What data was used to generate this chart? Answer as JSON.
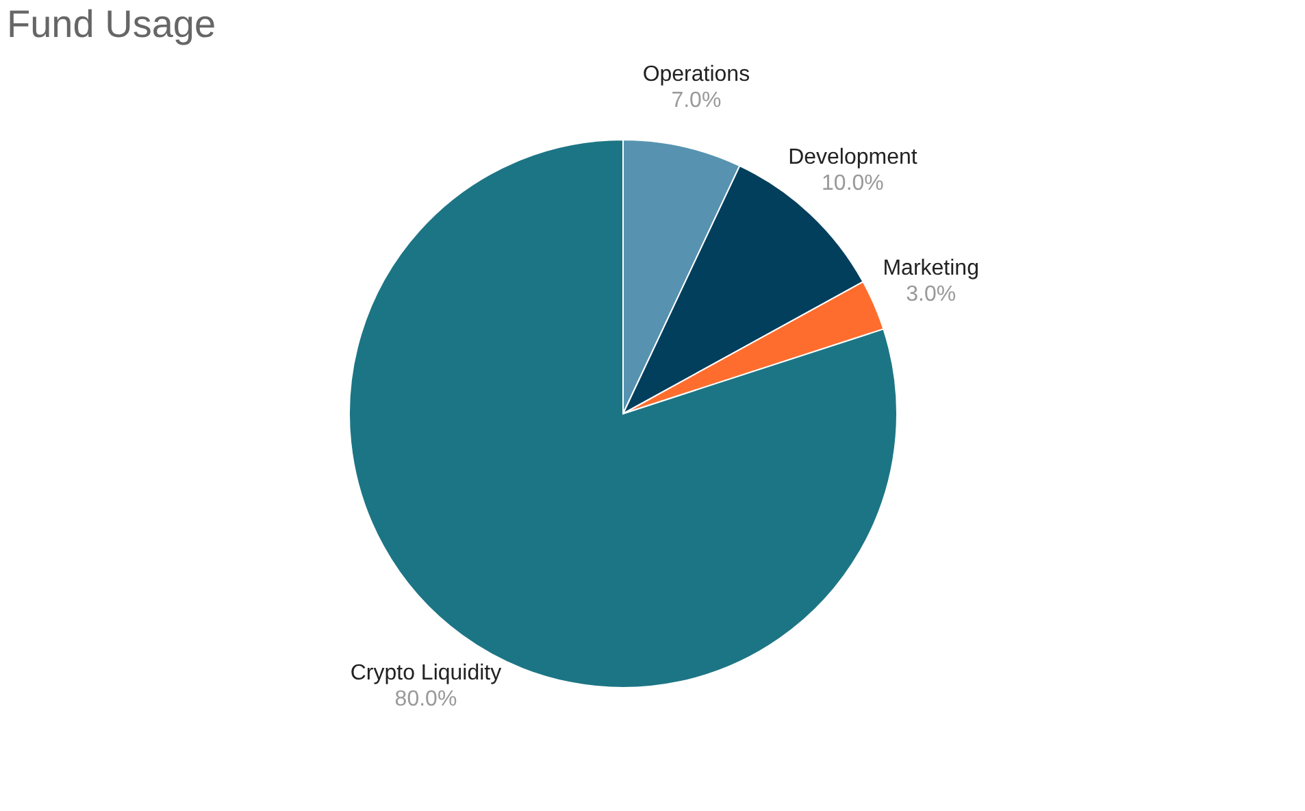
{
  "chart_data": {
    "type": "pie",
    "title": "Fund Usage",
    "categories": [
      "Operations",
      "Development",
      "Marketing",
      "Crypto Liquidity"
    ],
    "values": [
      7,
      10,
      3,
      80
    ],
    "colors": [
      "#5793b0",
      "#023f5c",
      "#ff6d2e",
      "#1c7584"
    ],
    "value_labels": [
      "7.0%",
      "10.0%",
      "3.0%",
      "80.0%"
    ],
    "legend": false
  }
}
